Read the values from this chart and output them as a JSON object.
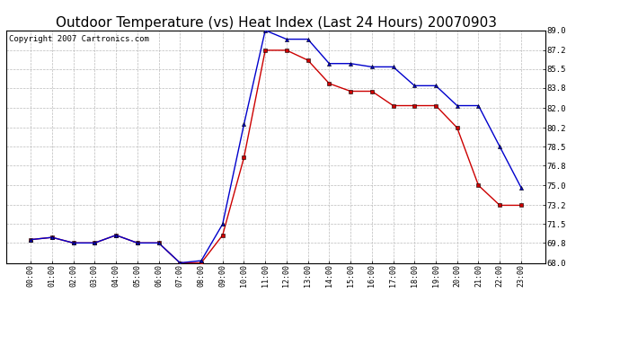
{
  "title": "Outdoor Temperature (vs) Heat Index (Last 24 Hours) 20070903",
  "copyright": "Copyright 2007 Cartronics.com",
  "hours": [
    "00:00",
    "01:00",
    "02:00",
    "03:00",
    "04:00",
    "05:00",
    "06:00",
    "07:00",
    "08:00",
    "09:00",
    "10:00",
    "11:00",
    "12:00",
    "13:00",
    "14:00",
    "15:00",
    "16:00",
    "17:00",
    "18:00",
    "19:00",
    "20:00",
    "21:00",
    "22:00",
    "23:00"
  ],
  "temp": [
    70.1,
    70.3,
    69.8,
    69.8,
    70.5,
    69.8,
    69.8,
    68.0,
    68.0,
    70.5,
    77.5,
    87.2,
    87.2,
    86.3,
    84.2,
    83.5,
    83.5,
    82.2,
    82.2,
    82.2,
    80.2,
    75.0,
    73.2,
    73.2
  ],
  "heat_index": [
    70.1,
    70.3,
    69.8,
    69.8,
    70.5,
    69.8,
    69.8,
    68.0,
    68.2,
    71.5,
    80.5,
    89.0,
    88.2,
    88.2,
    86.0,
    86.0,
    85.7,
    85.7,
    84.0,
    84.0,
    82.2,
    82.2,
    78.5,
    74.8
  ],
  "temp_color": "#cc0000",
  "heat_index_color": "#0000cc",
  "background_color": "#ffffff",
  "grid_color": "#bbbbbb",
  "ylim": [
    68.0,
    89.0
  ],
  "yticks": [
    68.0,
    69.8,
    71.5,
    73.2,
    75.0,
    76.8,
    78.5,
    80.2,
    82.0,
    83.8,
    85.5,
    87.2,
    89.0
  ],
  "title_fontsize": 11,
  "copyright_fontsize": 6.5
}
